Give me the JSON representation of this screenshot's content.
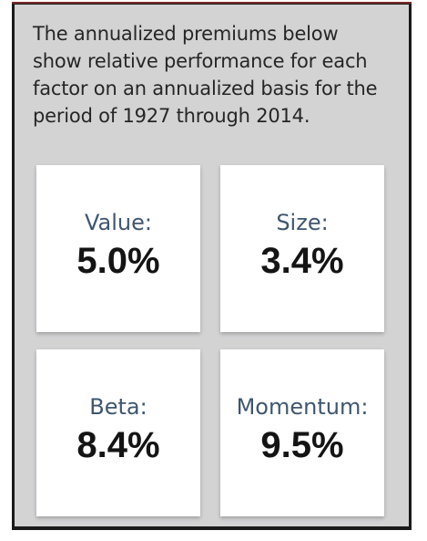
{
  "intro": {
    "line1": "The annualized premiums below",
    "line2": "show relative performance for each",
    "line3": "factor on an annualized basis for the",
    "line4": "period of 1927 through 2014."
  },
  "factors": [
    {
      "label": "Value:",
      "value": "5.0%"
    },
    {
      "label": "Size:",
      "value": "3.4%"
    },
    {
      "label": "Beta:",
      "value": "8.4%"
    },
    {
      "label": "Momentum:",
      "value": "9.5%"
    }
  ],
  "colors": {
    "panel_background": "#d3d3d4",
    "label_text": "#3f5670",
    "value_text": "#141414"
  }
}
